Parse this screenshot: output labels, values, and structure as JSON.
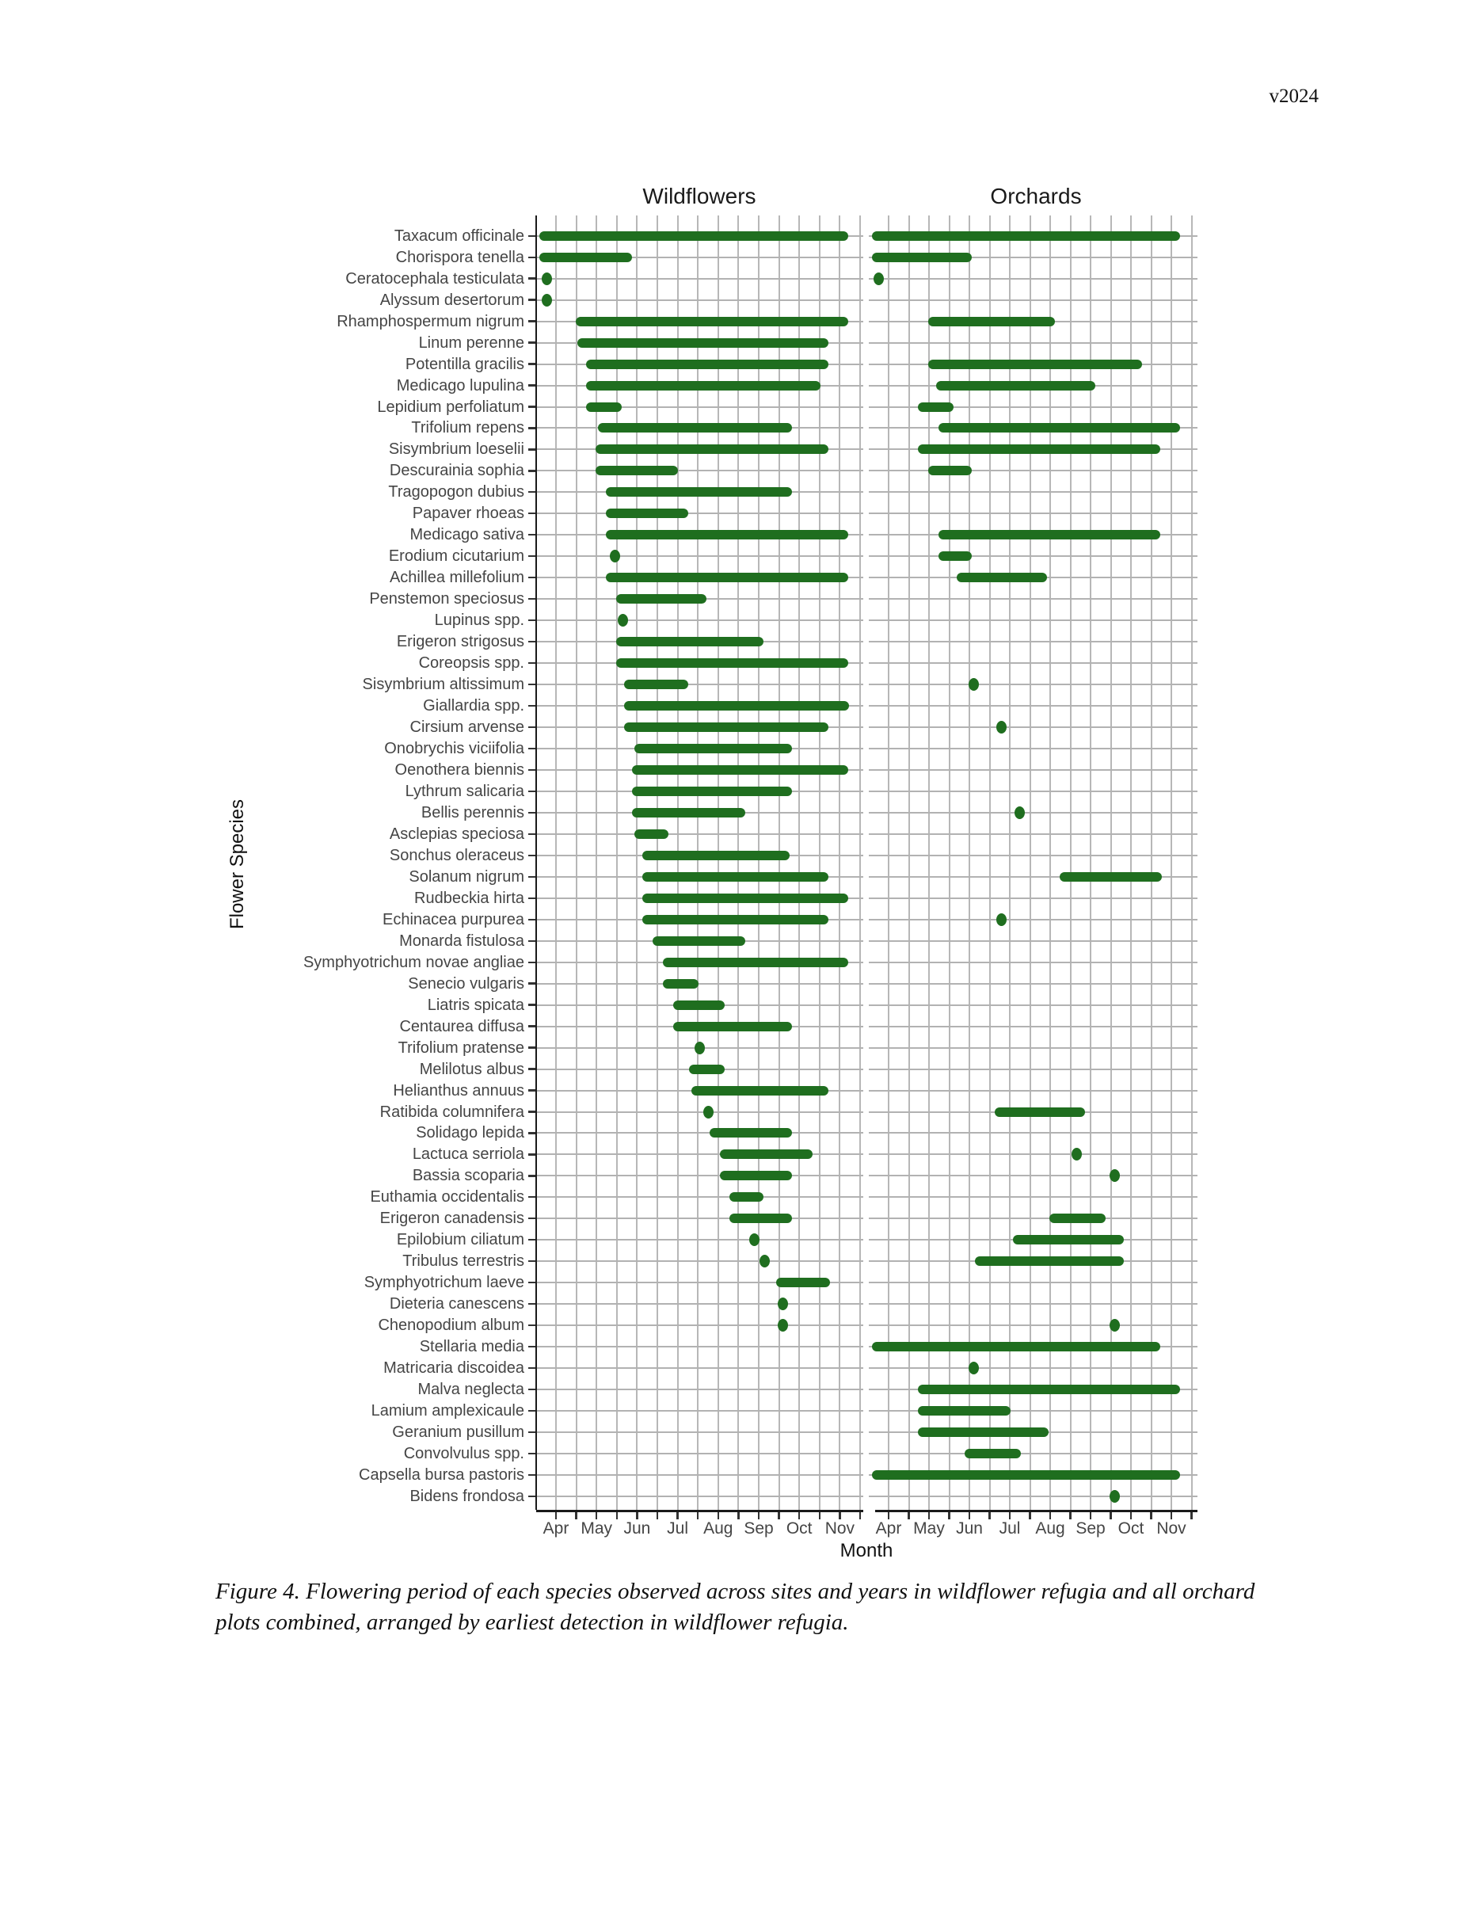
{
  "page": {
    "version_tag": "v2024",
    "caption": "Figure 4. Flowering period of each species observed across sites and years in wildflower refugia and all orchard plots combined, arranged by earliest detection in wildflower refugia."
  },
  "chart_data": {
    "type": "bar",
    "subtype": "horizontal-range-gantt",
    "title_left": "Wildflowers",
    "title_right": "Orchards",
    "xlabel": "Month",
    "ylabel": "Flower Species",
    "months": [
      "Apr",
      "May",
      "Jun",
      "Jul",
      "Aug",
      "Sep",
      "Oct",
      "Nov"
    ],
    "month_numbers": [
      4,
      5,
      6,
      7,
      8,
      9,
      10,
      11
    ],
    "xlim": [
      3.5,
      11.6
    ],
    "grid": "on",
    "bar_color": "#1f6e1f",
    "value_unit": "month number, Apr = 4; [start, end]; start == end means single dot; null means not observed",
    "species": [
      {
        "name": "Taxacum officinale",
        "wildflowers": [
          3.7,
          11.1
        ],
        "orchards": [
          3.7,
          11.1
        ]
      },
      {
        "name": "Chorispora tenella",
        "wildflowers": [
          3.7,
          5.75
        ],
        "orchards": [
          3.7,
          5.95
        ]
      },
      {
        "name": "Ceratocephala testiculata",
        "wildflowers": [
          3.78,
          3.78
        ],
        "orchards": [
          3.76,
          3.76
        ]
      },
      {
        "name": "Alyssum desertorum",
        "wildflowers": [
          3.78,
          3.78
        ],
        "orchards": null
      },
      {
        "name": "Rhamphospermum nigrum",
        "wildflowers": [
          4.6,
          11.1
        ],
        "orchards": [
          5.1,
          8.0
        ]
      },
      {
        "name": "Linum perenne",
        "wildflowers": [
          4.65,
          10.6
        ],
        "orchards": null
      },
      {
        "name": "Potentilla gracilis",
        "wildflowers": [
          4.85,
          10.6
        ],
        "orchards": [
          5.1,
          10.15
        ]
      },
      {
        "name": "Medicago lupulina",
        "wildflowers": [
          4.85,
          10.4
        ],
        "orchards": [
          5.3,
          9.0
        ]
      },
      {
        "name": "Lepidium perfoliatum",
        "wildflowers": [
          4.85,
          5.5
        ],
        "orchards": [
          4.85,
          5.5
        ]
      },
      {
        "name": "Trifolium repens",
        "wildflowers": [
          5.15,
          9.7
        ],
        "orchards": [
          5.35,
          11.1
        ]
      },
      {
        "name": "Sisymbrium loeselii",
        "wildflowers": [
          5.1,
          10.6
        ],
        "orchards": [
          4.85,
          10.6
        ]
      },
      {
        "name": "Descurainia sophia",
        "wildflowers": [
          5.1,
          6.9
        ],
        "orchards": [
          5.1,
          5.95
        ]
      },
      {
        "name": "Tragopogon dubius",
        "wildflowers": [
          5.35,
          9.7
        ],
        "orchards": null
      },
      {
        "name": "Papaver rhoeas",
        "wildflowers": [
          5.35,
          7.15
        ],
        "orchards": null
      },
      {
        "name": "Medicago sativa",
        "wildflowers": [
          5.35,
          11.1
        ],
        "orchards": [
          5.35,
          10.6
        ]
      },
      {
        "name": "Erodium cicutarium",
        "wildflowers": [
          5.45,
          5.45
        ],
        "orchards": [
          5.35,
          5.95
        ]
      },
      {
        "name": "Achillea millefolium",
        "wildflowers": [
          5.35,
          11.1
        ],
        "orchards": [
          5.8,
          7.8
        ]
      },
      {
        "name": "Penstemon speciosus",
        "wildflowers": [
          5.6,
          7.6
        ],
        "orchards": null
      },
      {
        "name": "Lupinus spp.",
        "wildflowers": [
          5.65,
          5.65
        ],
        "orchards": null
      },
      {
        "name": "Erigeron strigosus",
        "wildflowers": [
          5.6,
          9.0
        ],
        "orchards": null
      },
      {
        "name": "Coreopsis spp.",
        "wildflowers": [
          5.6,
          11.1
        ],
        "orchards": null
      },
      {
        "name": "Sisymbrium altissimum",
        "wildflowers": [
          5.8,
          7.15
        ],
        "orchards": [
          6.1,
          6.1
        ]
      },
      {
        "name": "Giallardia spp.",
        "wildflowers": [
          5.8,
          11.1
        ],
        "orchards": null
      },
      {
        "name": "Cirsium arvense",
        "wildflowers": [
          5.8,
          10.6
        ],
        "orchards": [
          6.8,
          6.8
        ]
      },
      {
        "name": "Onobrychis viciifolia",
        "wildflowers": [
          6.05,
          9.7
        ],
        "orchards": null
      },
      {
        "name": "Oenothera biennis",
        "wildflowers": [
          6.0,
          11.1
        ],
        "orchards": null
      },
      {
        "name": "Lythrum salicaria",
        "wildflowers": [
          6.0,
          9.7
        ],
        "orchards": null
      },
      {
        "name": "Bellis perennis",
        "wildflowers": [
          6.0,
          8.55
        ],
        "orchards": [
          7.25,
          7.25
        ]
      },
      {
        "name": "Asclepias speciosa",
        "wildflowers": [
          6.05,
          6.65
        ],
        "orchards": null
      },
      {
        "name": "Sonchus oleraceus",
        "wildflowers": [
          6.25,
          9.65
        ],
        "orchards": null
      },
      {
        "name": "Solanum nigrum",
        "wildflowers": [
          6.25,
          10.6
        ],
        "orchards": [
          8.35,
          10.65
        ]
      },
      {
        "name": "Rudbeckia hirta",
        "wildflowers": [
          6.25,
          11.1
        ],
        "orchards": null
      },
      {
        "name": "Echinacea purpurea",
        "wildflowers": [
          6.25,
          10.6
        ],
        "orchards": [
          6.8,
          6.8
        ]
      },
      {
        "name": "Monarda fistulosa",
        "wildflowers": [
          6.5,
          8.55
        ],
        "orchards": null
      },
      {
        "name": "Symphyotrichum novae angliae",
        "wildflowers": [
          6.75,
          11.1
        ],
        "orchards": null
      },
      {
        "name": "Senecio vulgaris",
        "wildflowers": [
          6.75,
          7.4
        ],
        "orchards": null
      },
      {
        "name": "Liatris spicata",
        "wildflowers": [
          7.0,
          8.05
        ],
        "orchards": null
      },
      {
        "name": "Centaurea diffusa",
        "wildflowers": [
          7.0,
          9.7
        ],
        "orchards": null
      },
      {
        "name": "Trifolium pratense",
        "wildflowers": [
          7.55,
          7.55
        ],
        "orchards": null
      },
      {
        "name": "Melilotus albus",
        "wildflowers": [
          7.4,
          8.05
        ],
        "orchards": null
      },
      {
        "name": "Helianthus annuus",
        "wildflowers": [
          7.45,
          10.6
        ],
        "orchards": null
      },
      {
        "name": "Ratibida columnifera",
        "wildflowers": [
          7.75,
          7.75
        ],
        "orchards": [
          6.75,
          8.75
        ]
      },
      {
        "name": "Solidago lepida",
        "wildflowers": [
          7.9,
          9.7
        ],
        "orchards": null
      },
      {
        "name": "Lactuca serriola",
        "wildflowers": [
          8.15,
          10.2
        ],
        "orchards": [
          8.65,
          8.65
        ]
      },
      {
        "name": "Bassia scoparia",
        "wildflowers": [
          8.15,
          9.7
        ],
        "orchards": [
          9.6,
          9.6
        ]
      },
      {
        "name": "Euthamia occidentalis",
        "wildflowers": [
          8.4,
          9.0
        ],
        "orchards": null
      },
      {
        "name": "Erigeron canadensis",
        "wildflowers": [
          8.4,
          9.7
        ],
        "orchards": [
          8.1,
          9.25
        ]
      },
      {
        "name": "Epilobium ciliatum",
        "wildflowers": [
          8.9,
          8.9
        ],
        "orchards": [
          7.2,
          9.7
        ]
      },
      {
        "name": "Tribulus terrestris",
        "wildflowers": [
          9.15,
          9.15
        ],
        "orchards": [
          6.25,
          9.7
        ]
      },
      {
        "name": "Symphyotrichum laeve",
        "wildflowers": [
          9.55,
          10.65
        ],
        "orchards": null
      },
      {
        "name": "Dieteria canescens",
        "wildflowers": [
          9.6,
          9.6
        ],
        "orchards": null
      },
      {
        "name": "Chenopodium album",
        "wildflowers": [
          9.6,
          9.6
        ],
        "orchards": [
          9.6,
          9.6
        ]
      },
      {
        "name": "Stellaria media",
        "wildflowers": null,
        "orchards": [
          3.7,
          10.6
        ]
      },
      {
        "name": "Matricaria discoidea",
        "wildflowers": null,
        "orchards": [
          6.1,
          6.1
        ]
      },
      {
        "name": "Malva neglecta",
        "wildflowers": null,
        "orchards": [
          4.85,
          11.1
        ]
      },
      {
        "name": "Lamium amplexicaule",
        "wildflowers": null,
        "orchards": [
          4.85,
          6.9
        ]
      },
      {
        "name": "Geranium pusillum",
        "wildflowers": null,
        "orchards": [
          4.85,
          7.85
        ]
      },
      {
        "name": "Convolvulus spp.",
        "wildflowers": null,
        "orchards": [
          6.0,
          7.15
        ]
      },
      {
        "name": "Capsella bursa pastoris",
        "wildflowers": null,
        "orchards": [
          3.7,
          11.1
        ]
      },
      {
        "name": "Bidens frondosa",
        "wildflowers": null,
        "orchards": [
          9.6,
          9.6
        ]
      }
    ]
  }
}
